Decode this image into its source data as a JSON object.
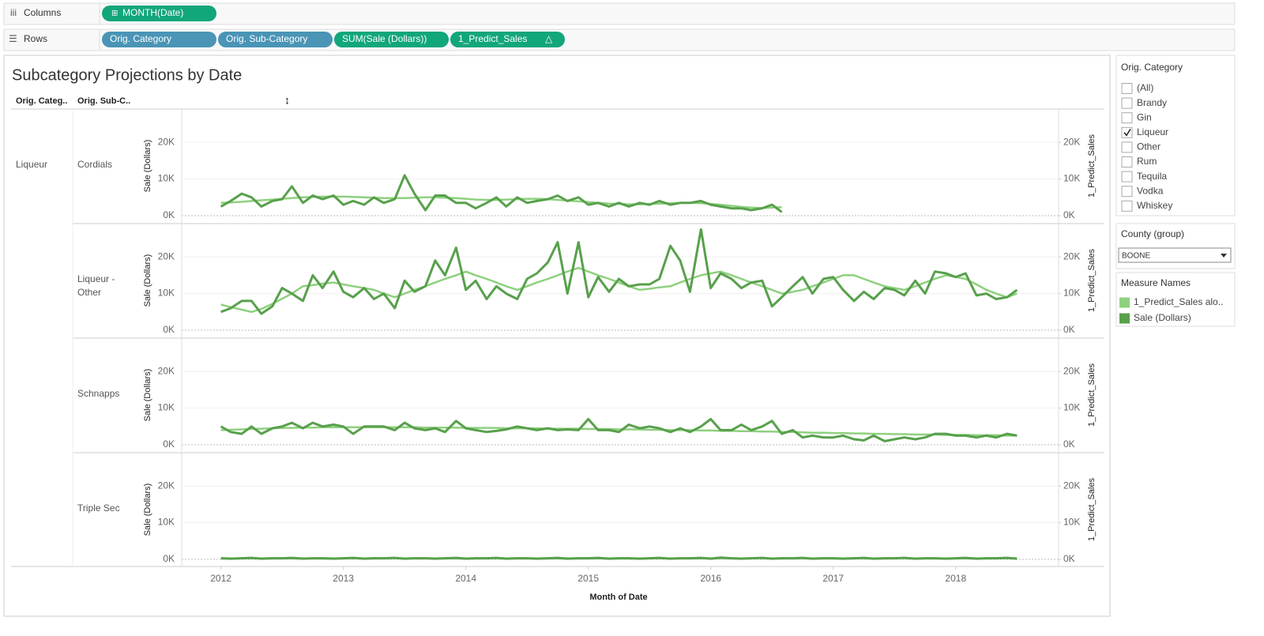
{
  "shelves": {
    "columns": {
      "label": "Columns",
      "pills": [
        "MONTH(Date)"
      ]
    },
    "rows": {
      "label": "Rows",
      "pills": [
        "Orig. Category",
        "Orig. Sub-Category",
        "SUM(Sale (Dollars))",
        "1_Predict_Sales"
      ]
    }
  },
  "chart_data": {
    "type": "line",
    "title": "Subcategory Projections by Date",
    "headers": [
      "Orig. Categ..",
      "Orig. Sub-C.."
    ],
    "category": "Liqueur",
    "x_label": "Month of Date",
    "y_label": "Sale (Dollars)",
    "y2_label": "1_Predict_Sales",
    "xlim": [
      2011.68,
      2018.84
    ],
    "xticks": [
      2012,
      2013,
      2014,
      2015,
      2016,
      2017,
      2018
    ],
    "ylim": [
      0,
      28000
    ],
    "yticks": [
      {
        "value": 0,
        "label": "0K"
      },
      {
        "value": 10000,
        "label": "10K"
      },
      {
        "value": 20000,
        "label": "20K"
      }
    ],
    "y2lim": [
      0,
      28000
    ],
    "y2ticks": [
      {
        "value": 0,
        "label": "0K"
      },
      {
        "value": 10000,
        "label": "10K"
      },
      {
        "value": 20000,
        "label": "20K"
      }
    ],
    "series": [
      {
        "name": "1_Predict_Sales alo..",
        "color": "#8fd07f",
        "axis": "y2"
      },
      {
        "name": "Sale (Dollars)",
        "color": "#58a04c",
        "axis": "y"
      }
    ],
    "x": [
      2012.0,
      2012.08,
      2012.17,
      2012.25,
      2012.33,
      2012.42,
      2012.5,
      2012.58,
      2012.67,
      2012.75,
      2012.83,
      2012.92,
      2013.0,
      2013.08,
      2013.17,
      2013.25,
      2013.33,
      2013.42,
      2013.5,
      2013.58,
      2013.67,
      2013.75,
      2013.83,
      2013.92,
      2014.0,
      2014.08,
      2014.17,
      2014.25,
      2014.33,
      2014.42,
      2014.5,
      2014.58,
      2014.67,
      2014.75,
      2014.83,
      2014.92,
      2015.0,
      2015.08,
      2015.17,
      2015.25,
      2015.33,
      2015.42,
      2015.5,
      2015.58,
      2015.67,
      2015.75,
      2015.83,
      2015.92,
      2016.0,
      2016.08,
      2016.17,
      2016.25,
      2016.33,
      2016.42,
      2016.5,
      2016.58,
      2016.67,
      2016.75,
      2016.83,
      2016.92,
      2017.0,
      2017.08,
      2017.17,
      2017.25,
      2017.33,
      2017.42,
      2017.5,
      2017.58,
      2017.67,
      2017.75,
      2017.83,
      2017.92,
      2018.0,
      2018.08,
      2018.17,
      2018.25,
      2018.33,
      2018.42,
      2018.5
    ],
    "panes": [
      {
        "name": "Cordials",
        "values": [
          [
            3500,
            3600,
            3800,
            4000,
            4200,
            4400,
            4600,
            4800,
            5000,
            5100,
            5200,
            5200,
            5200,
            5100,
            5000,
            4900,
            4800,
            4800,
            4800,
            4900,
            5000,
            5000,
            4900,
            4800,
            4600,
            4400,
            4300,
            4300,
            4400,
            4500,
            4600,
            4600,
            4500,
            4300,
            4100,
            3900,
            3700,
            3500,
            3300,
            3200,
            3100,
            3100,
            3200,
            3300,
            3400,
            3500,
            3500,
            3400,
            3200,
            3000,
            2700,
            2400,
            2200,
            2100,
            2200,
            2300,
            null,
            null,
            null,
            null,
            null,
            null,
            null,
            null,
            null,
            null,
            null,
            null,
            null,
            null,
            null,
            null,
            null,
            null,
            null,
            null,
            null,
            null,
            null
          ],
          [
            2500,
            4000,
            6000,
            5000,
            2500,
            4000,
            4500,
            8000,
            3500,
            5500,
            4500,
            5500,
            3000,
            4000,
            3000,
            5000,
            3500,
            4500,
            11000,
            6000,
            1500,
            5500,
            5500,
            3500,
            3500,
            2000,
            3500,
            5000,
            2500,
            5000,
            3500,
            4000,
            4500,
            5500,
            4000,
            5000,
            3000,
            3500,
            2500,
            3500,
            2500,
            3500,
            3000,
            4000,
            3000,
            3500,
            3500,
            4000,
            3000,
            2500,
            2000,
            2000,
            1500,
            2000,
            3000,
            1000,
            null,
            null,
            null,
            null,
            null,
            null,
            null,
            null,
            null,
            null,
            null,
            null,
            null,
            null,
            null,
            null,
            null,
            null,
            null,
            null,
            null,
            null,
            null
          ]
        ]
      },
      {
        "name": "Liqueur - Other",
        "values": [
          [
            7000,
            6300,
            5600,
            5000,
            5800,
            7200,
            8600,
            10000,
            12000,
            12300,
            12700,
            13000,
            12500,
            12000,
            11500,
            11000,
            10000,
            9000,
            10000,
            11000,
            12000,
            13000,
            14000,
            15000,
            16000,
            15000,
            14000,
            13000,
            12000,
            11000,
            12000,
            13000,
            14000,
            15000,
            16000,
            17000,
            16000,
            15000,
            14000,
            13000,
            12000,
            11000,
            11300,
            11700,
            12000,
            13000,
            14000,
            15000,
            15500,
            16000,
            15000,
            14000,
            13000,
            12000,
            11000,
            10000,
            10500,
            11000,
            12000,
            13000,
            14000,
            15000,
            15000,
            14000,
            13000,
            12000,
            11500,
            11000,
            12000,
            13000,
            14000,
            15000,
            14500,
            14000,
            12500,
            11000,
            10000,
            9000,
            10000
          ],
          [
            5000,
            6000,
            8000,
            8000,
            4500,
            6500,
            11500,
            10000,
            8000,
            15000,
            11500,
            16000,
            10500,
            9000,
            11500,
            8500,
            10000,
            6000,
            13500,
            10500,
            12000,
            19000,
            15000,
            22500,
            11000,
            13500,
            8500,
            12000,
            10000,
            8500,
            14000,
            15500,
            18500,
            24000,
            10000,
            24000,
            9000,
            14500,
            10500,
            14000,
            12000,
            12500,
            12500,
            14000,
            23000,
            19000,
            10500,
            27500,
            11500,
            15500,
            14000,
            11500,
            13000,
            13500,
            6500,
            9000,
            12000,
            14500,
            10000,
            14000,
            14500,
            11000,
            8000,
            10500,
            8500,
            11500,
            11000,
            9500,
            13500,
            10000,
            16000,
            15500,
            14500,
            15500,
            9500,
            10000,
            8500,
            9000,
            11000
          ]
        ]
      },
      {
        "name": "Schnapps",
        "values": [
          [
            4000,
            4100,
            4200,
            4300,
            4400,
            4500,
            4600,
            4600,
            4700,
            4700,
            4800,
            4800,
            4800,
            4800,
            4800,
            4800,
            4800,
            4800,
            4800,
            4800,
            4700,
            4700,
            4700,
            4700,
            4600,
            4600,
            4600,
            4600,
            4500,
            4500,
            4500,
            4500,
            4400,
            4400,
            4400,
            4400,
            4300,
            4300,
            4300,
            4200,
            4200,
            4200,
            4100,
            4100,
            4000,
            4000,
            4000,
            3900,
            3900,
            3800,
            3800,
            3700,
            3700,
            3600,
            3600,
            3500,
            3500,
            3400,
            3300,
            3300,
            3200,
            3200,
            3100,
            3100,
            3000,
            3000,
            2900,
            2900,
            2800,
            2800,
            2800,
            2700,
            2700,
            2700,
            2600,
            2600,
            2600,
            2500,
            2500
          ],
          [
            5000,
            3500,
            3000,
            5000,
            3000,
            4500,
            5000,
            6000,
            4500,
            6000,
            5000,
            5500,
            5000,
            3000,
            5000,
            5000,
            5000,
            4000,
            6000,
            4500,
            4000,
            4500,
            3500,
            6500,
            4500,
            4000,
            3500,
            3800,
            4200,
            5000,
            4500,
            4000,
            4500,
            4000,
            4200,
            4000,
            7000,
            4000,
            4000,
            3500,
            5500,
            4500,
            5000,
            4500,
            3500,
            4500,
            3500,
            5000,
            7000,
            4000,
            4000,
            5500,
            4000,
            5000,
            6500,
            3000,
            4000,
            2000,
            2500,
            2000,
            2000,
            2500,
            1500,
            1200,
            2500,
            1000,
            1500,
            2000,
            1500,
            2000,
            3000,
            3000,
            2500,
            2500,
            2000,
            2500,
            2000,
            3000,
            2500
          ]
        ]
      },
      {
        "name": "Triple Sec",
        "values": [
          [
            300,
            300,
            300,
            300,
            300,
            300,
            300,
            300,
            300,
            300,
            300,
            300,
            300,
            300,
            300,
            300,
            300,
            300,
            300,
            300,
            300,
            300,
            300,
            300,
            300,
            300,
            300,
            300,
            300,
            300,
            300,
            300,
            300,
            300,
            300,
            300,
            300,
            300,
            300,
            300,
            300,
            300,
            300,
            300,
            300,
            300,
            300,
            300,
            300,
            300,
            300,
            300,
            300,
            300,
            300,
            300,
            300,
            300,
            300,
            300,
            300,
            300,
            300,
            300,
            300,
            300,
            300,
            300,
            300,
            300,
            300,
            300,
            300,
            300,
            300,
            300,
            300,
            300,
            300
          ],
          [
            300,
            200,
            300,
            400,
            200,
            300,
            300,
            400,
            200,
            300,
            300,
            200,
            300,
            400,
            200,
            300,
            300,
            400,
            200,
            300,
            300,
            200,
            300,
            400,
            200,
            300,
            300,
            400,
            200,
            300,
            300,
            200,
            300,
            400,
            200,
            300,
            300,
            400,
            200,
            300,
            300,
            200,
            300,
            400,
            200,
            300,
            300,
            400,
            200,
            500,
            300,
            200,
            300,
            400,
            200,
            300,
            300,
            400,
            200,
            300,
            300,
            200,
            300,
            400,
            200,
            300,
            300,
            400,
            200,
            300,
            300,
            200,
            300,
            400,
            200,
            300,
            300,
            400,
            200
          ]
        ]
      }
    ]
  },
  "filters": {
    "category": {
      "title": "Orig. Category",
      "options": [
        "(All)",
        "Brandy",
        "Gin",
        "Liqueur",
        "Other",
        "Rum",
        "Tequila",
        "Vodka",
        "Whiskey"
      ],
      "checked": [
        "Liqueur"
      ]
    },
    "county": {
      "title": "County (group)",
      "value": "BOONE"
    },
    "legend_title": "Measure Names"
  }
}
